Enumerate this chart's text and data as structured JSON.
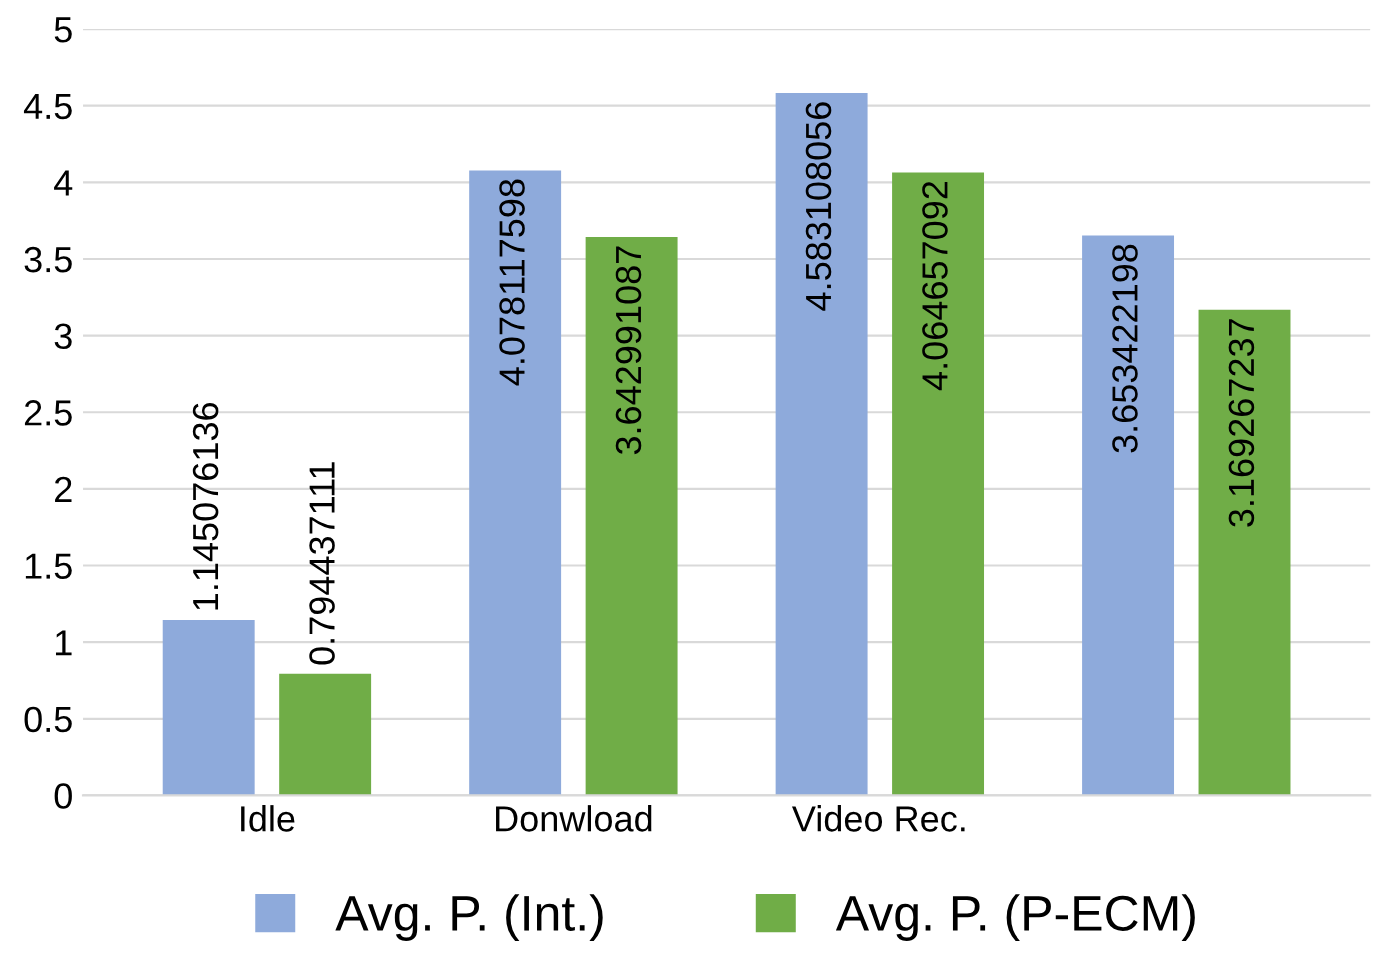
{
  "chart_data": {
    "type": "bar",
    "categories": [
      "Idle",
      "Donwload",
      "Video Rec.",
      null
    ],
    "series": [
      {
        "name": "Avg. P. (Int.)",
        "color": "#8eaadb",
        "values": [
          1.145076136,
          4.078117598,
          4.583108056,
          3.653422198
        ]
      },
      {
        "name": "Avg. P. (P-ECM)",
        "color": "#70ad47",
        "values": [
          0.794437111,
          3.642991087,
          4.064657092,
          3.169267237
        ]
      }
    ],
    "ylim": [
      0,
      5
    ],
    "yticks": [
      0,
      0.5,
      1,
      1.5,
      2,
      2.5,
      3,
      3.5,
      4,
      4.5,
      5
    ],
    "grid": "y",
    "legend": "bottom",
    "data_labels": true
  }
}
